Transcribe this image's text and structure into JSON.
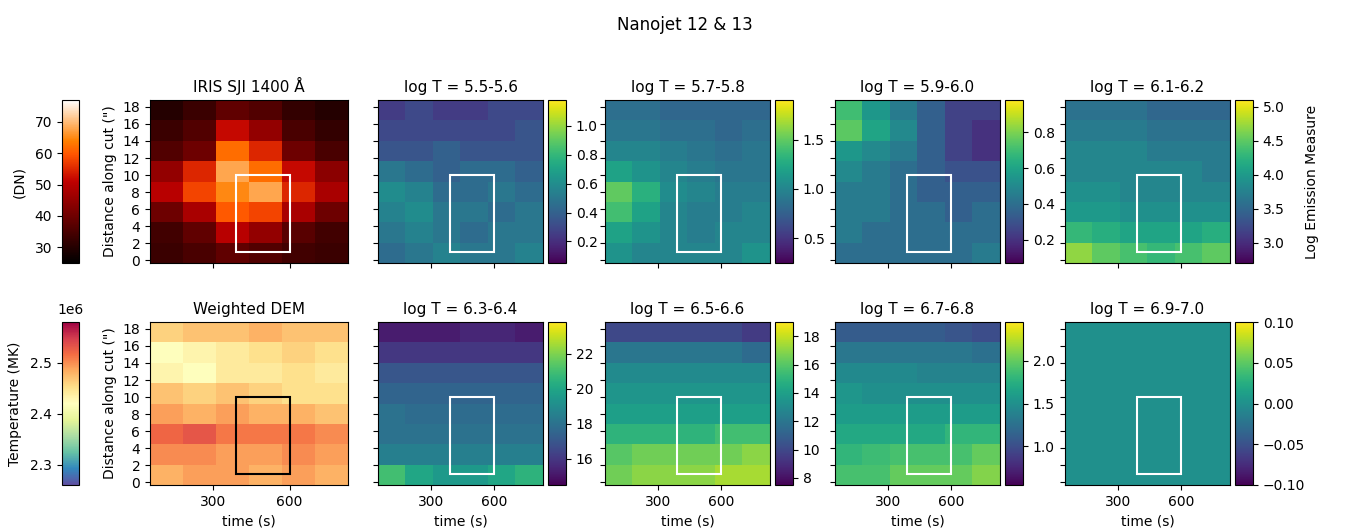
{
  "title": "Nanojet 12 & 13",
  "side_label": "Log Emission Measure",
  "chart_data": [
    {
      "type": "heatmap",
      "title": "IRIS SJI 1400 Å",
      "ylabel": "Distance along cut (\")",
      "xlim": [
        50,
        830
      ],
      "ylim": [
        -0.3,
        18.8
      ],
      "xticks": [
        300,
        600
      ],
      "yticks": [
        0,
        2,
        4,
        6,
        8,
        10,
        12,
        14,
        16,
        18
      ],
      "tick_labels": "y",
      "color": "gist_heat",
      "colorbar_side": "left",
      "colorbar_label": "(DN)",
      "clim": [
        25,
        77
      ],
      "cticks": [
        30,
        40,
        50,
        60,
        70
      ],
      "box": {
        "x": [
          390,
          600
        ],
        "y": [
          1,
          10
        ],
        "color": "white"
      },
      "cells": [
        [
          33,
          35,
          38,
          36,
          34,
          33
        ],
        [
          34,
          38,
          50,
          45,
          37,
          34
        ],
        [
          40,
          48,
          60,
          58,
          48,
          40
        ],
        [
          50,
          58,
          65,
          68,
          55,
          48
        ],
        [
          45,
          55,
          68,
          62,
          52,
          44
        ],
        [
          36,
          40,
          62,
          55,
          40,
          35
        ],
        [
          33,
          36,
          52,
          45,
          35,
          32
        ],
        [
          30,
          33,
          38,
          36,
          32,
          30
        ]
      ]
    },
    {
      "type": "heatmap",
      "title": "log T = 5.5-5.6",
      "xlim": [
        50,
        830
      ],
      "ylim": [
        -0.3,
        18.8
      ],
      "xticks": [
        300,
        600
      ],
      "yticks": [
        0,
        2,
        4,
        6,
        8,
        10,
        12,
        14,
        16,
        18
      ],
      "tick_labels": false,
      "color": "viridis",
      "colorbar_side": "right",
      "clim": [
        0.05,
        1.18
      ],
      "cticks": [
        0.2,
        0.4,
        0.6,
        0.8,
        1.0
      ],
      "box": {
        "x": [
          390,
          600
        ],
        "y": [
          1,
          10
        ],
        "color": "white"
      },
      "cells": [
        [
          0.45,
          0.5,
          0.55,
          0.5,
          0.5,
          0.55
        ],
        [
          0.5,
          0.55,
          0.5,
          0.45,
          0.5,
          0.5
        ],
        [
          0.55,
          0.6,
          0.5,
          0.5,
          0.45,
          0.5
        ],
        [
          0.6,
          0.55,
          0.45,
          0.45,
          0.5,
          0.45
        ],
        [
          0.5,
          0.45,
          0.4,
          0.45,
          0.45,
          0.4
        ],
        [
          0.35,
          0.35,
          0.4,
          0.35,
          0.35,
          0.35
        ],
        [
          0.3,
          0.3,
          0.3,
          0.3,
          0.3,
          0.35
        ],
        [
          0.25,
          0.3,
          0.25,
          0.25,
          0.3,
          0.3
        ]
      ]
    },
    {
      "type": "heatmap",
      "title": "log T = 5.7-5.8",
      "xlim": [
        50,
        830
      ],
      "ylim": [
        -0.3,
        18.8
      ],
      "xticks": [
        300,
        600
      ],
      "yticks": [
        0,
        2,
        4,
        6,
        8,
        10,
        12,
        14,
        16,
        18
      ],
      "tick_labels": false,
      "color": "viridis",
      "colorbar_side": "right",
      "clim": [
        0.25,
        1.9
      ],
      "cticks": [
        0.5,
        1.0,
        1.5
      ],
      "box": {
        "x": [
          390,
          600
        ],
        "y": [
          1,
          10
        ],
        "color": "white"
      },
      "cells": [
        [
          1.1,
          1.0,
          1.0,
          1.0,
          1.0,
          1.1
        ],
        [
          1.2,
          1.1,
          1.0,
          0.95,
          1.0,
          1.0
        ],
        [
          1.4,
          1.2,
          1.0,
          0.95,
          0.95,
          1.0
        ],
        [
          1.5,
          1.3,
          1.05,
          1.0,
          0.95,
          0.95
        ],
        [
          1.2,
          1.1,
          1.0,
          0.95,
          0.9,
          0.9
        ],
        [
          1.0,
          1.0,
          0.95,
          0.9,
          0.85,
          0.9
        ],
        [
          0.9,
          0.9,
          0.85,
          0.85,
          0.8,
          0.85
        ],
        [
          0.85,
          0.85,
          0.8,
          0.8,
          0.8,
          0.8
        ]
      ]
    },
    {
      "type": "heatmap",
      "title": "log T = 5.9-6.0",
      "xlim": [
        50,
        830
      ],
      "ylim": [
        -0.3,
        18.8
      ],
      "xticks": [
        300,
        600
      ],
      "yticks": [
        0,
        2,
        4,
        6,
        8,
        10,
        12,
        14,
        16,
        18
      ],
      "tick_labels": false,
      "color": "viridis",
      "colorbar_side": "right",
      "clim": [
        0.07,
        0.98
      ],
      "cticks": [
        0.2,
        0.4,
        0.6,
        0.8
      ],
      "box": {
        "x": [
          390,
          600
        ],
        "y": [
          1,
          10
        ],
        "color": "white"
      },
      "cells": [
        [
          0.4,
          0.4,
          0.4,
          0.4,
          0.4,
          0.45
        ],
        [
          0.45,
          0.4,
          0.4,
          0.4,
          0.4,
          0.4
        ],
        [
          0.45,
          0.45,
          0.4,
          0.4,
          0.35,
          0.4
        ],
        [
          0.45,
          0.45,
          0.4,
          0.35,
          0.35,
          0.35
        ],
        [
          0.5,
          0.45,
          0.4,
          0.35,
          0.3,
          0.3
        ],
        [
          0.55,
          0.5,
          0.45,
          0.35,
          0.25,
          0.2
        ],
        [
          0.75,
          0.6,
          0.5,
          0.35,
          0.25,
          0.2
        ],
        [
          0.7,
          0.55,
          0.45,
          0.35,
          0.25,
          0.25
        ]
      ]
    },
    {
      "type": "heatmap",
      "title": "log T = 6.1-6.2",
      "xlim": [
        50,
        830
      ],
      "ylim": [
        -0.3,
        18.8
      ],
      "xticks": [
        300,
        600
      ],
      "yticks": [
        0,
        2,
        4,
        6,
        8,
        10,
        12,
        14,
        16,
        18
      ],
      "tick_labels": false,
      "color": "viridis",
      "colorbar_side": "right",
      "clim": [
        2.7,
        5.1
      ],
      "cticks": [
        3.0,
        3.5,
        4.0,
        4.5,
        5.0
      ],
      "box": {
        "x": [
          390,
          600
        ],
        "y": [
          1,
          10
        ],
        "color": "white"
      },
      "cells": [
        [
          4.7,
          4.5,
          4.4,
          4.3,
          4.4,
          4.5
        ],
        [
          4.3,
          4.2,
          4.1,
          4.1,
          4.1,
          4.2
        ],
        [
          4.0,
          4.0,
          3.9,
          3.9,
          3.9,
          3.9
        ],
        [
          3.9,
          3.9,
          3.8,
          3.8,
          3.8,
          3.8
        ],
        [
          3.8,
          3.8,
          3.8,
          3.8,
          3.8,
          3.7
        ],
        [
          3.8,
          3.8,
          3.8,
          3.7,
          3.7,
          3.7
        ],
        [
          3.7,
          3.7,
          3.7,
          3.6,
          3.6,
          3.6
        ],
        [
          3.6,
          3.6,
          3.6,
          3.5,
          3.5,
          3.5
        ]
      ]
    },
    {
      "type": "heatmap",
      "title": "Weighted DEM",
      "xlabel": "time (s)",
      "ylabel": "Distance along cut (\")",
      "xlim": [
        50,
        830
      ],
      "ylim": [
        -0.3,
        18.8
      ],
      "xticks": [
        300,
        600
      ],
      "yticks": [
        0,
        2,
        4,
        6,
        8,
        10,
        12,
        14,
        16,
        18
      ],
      "tick_labels": true,
      "color": "Spectral_r",
      "colorbar_side": "left",
      "colorbar_label": "Temperature (MK)",
      "clim": [
        2260000,
        2580000
      ],
      "cticks": [
        {
          "value": 2300000,
          "label": "2.3"
        },
        {
          "value": 2400000,
          "label": "2.4"
        },
        {
          "value": 2500000,
          "label": "2.5"
        }
      ],
      "colorbar_offset": "1e6",
      "box": {
        "x": [
          390,
          600
        ],
        "y": [
          1,
          10
        ],
        "color": "black"
      },
      "cells": [
        [
          2480000,
          2490000,
          2490000,
          2480000,
          2490000,
          2480000
        ],
        [
          2500000,
          2500000,
          2490000,
          2490000,
          2500000,
          2490000
        ],
        [
          2520000,
          2530000,
          2510000,
          2510000,
          2510000,
          2500000
        ],
        [
          2490000,
          2480000,
          2490000,
          2480000,
          2480000,
          2470000
        ],
        [
          2470000,
          2460000,
          2470000,
          2460000,
          2450000,
          2450000
        ],
        [
          2430000,
          2420000,
          2440000,
          2440000,
          2450000,
          2440000
        ],
        [
          2420000,
          2430000,
          2440000,
          2450000,
          2460000,
          2450000
        ],
        [
          2460000,
          2470000,
          2470000,
          2480000,
          2470000,
          2470000
        ]
      ]
    },
    {
      "type": "heatmap",
      "title": "log T = 6.3-6.4",
      "xlabel": "time (s)",
      "xlim": [
        50,
        830
      ],
      "ylim": [
        -0.3,
        18.8
      ],
      "xticks": [
        300,
        600
      ],
      "yticks": [
        0,
        2,
        4,
        6,
        8,
        10,
        12,
        14,
        16,
        18
      ],
      "tick_labels": "x",
      "color": "viridis",
      "colorbar_side": "right",
      "clim": [
        14.5,
        23.8
      ],
      "cticks": [
        16,
        18,
        20,
        22
      ],
      "box": {
        "x": [
          390,
          600
        ],
        "y": [
          1,
          10
        ],
        "color": "white"
      },
      "cells": [
        [
          21,
          20,
          19.5,
          19.5,
          20,
          20.5
        ],
        [
          18.5,
          18.5,
          18.5,
          18.5,
          18.5,
          18.5
        ],
        [
          18,
          18,
          18,
          18,
          18,
          18
        ],
        [
          18,
          17.8,
          17.8,
          17.8,
          17.8,
          17.8
        ],
        [
          17.5,
          17.5,
          17.5,
          17.5,
          17.5,
          17.5
        ],
        [
          17,
          17,
          17,
          17,
          17,
          17
        ],
        [
          16,
          16,
          16,
          16,
          16,
          16
        ],
        [
          15.2,
          15.2,
          15.2,
          15.5,
          15.5,
          15.2
        ]
      ]
    },
    {
      "type": "heatmap",
      "title": "log T = 6.5-6.6",
      "xlabel": "time (s)",
      "xlim": [
        50,
        830
      ],
      "ylim": [
        -0.3,
        18.8
      ],
      "xticks": [
        300,
        600
      ],
      "yticks": [
        0,
        2,
        4,
        6,
        8,
        10,
        12,
        14,
        16,
        18
      ],
      "tick_labels": "x",
      "color": "viridis",
      "colorbar_side": "right",
      "clim": [
        7.5,
        19
      ],
      "cticks": [
        8,
        10,
        12,
        14,
        16,
        18
      ],
      "box": {
        "x": [
          390,
          600
        ],
        "y": [
          1,
          10
        ],
        "color": "white"
      },
      "cells": [
        [
          16.5,
          17,
          17,
          17,
          17.5,
          17.5
        ],
        [
          16,
          16.5,
          16.5,
          16.5,
          16.5,
          17
        ],
        [
          15,
          15,
          15,
          15,
          15.5,
          15.5
        ],
        [
          14,
          14,
          14,
          14,
          14,
          14
        ],
        [
          13.5,
          13.5,
          13.5,
          13.5,
          13.5,
          13.5
        ],
        [
          13,
          13,
          13,
          13,
          13,
          13
        ],
        [
          12,
          12,
          12,
          12,
          12,
          11.5
        ],
        [
          10,
          10,
          10,
          10,
          10,
          9.5
        ]
      ]
    },
    {
      "type": "heatmap",
      "title": "log T = 6.7-6.8",
      "xlabel": "time (s)",
      "xlim": [
        50,
        830
      ],
      "ylim": [
        -0.3,
        18.8
      ],
      "xticks": [
        300,
        600
      ],
      "yticks": [
        0,
        2,
        4,
        6,
        8,
        10,
        12,
        14,
        16,
        18
      ],
      "tick_labels": "x",
      "color": "viridis",
      "colorbar_side": "right",
      "clim": [
        0.55,
        2.45
      ],
      "cticks": [
        1.0,
        1.5,
        2.0
      ],
      "box": {
        "x": [
          390,
          600
        ],
        "y": [
          1,
          10
        ],
        "color": "white"
      },
      "cells": [
        [
          1.9,
          1.9,
          2.0,
          2.0,
          2.0,
          2.1
        ],
        [
          1.8,
          1.85,
          1.9,
          1.9,
          1.9,
          2.0
        ],
        [
          1.7,
          1.7,
          1.7,
          1.7,
          1.8,
          1.8
        ],
        [
          1.6,
          1.6,
          1.6,
          1.6,
          1.6,
          1.6
        ],
        [
          1.55,
          1.5,
          1.5,
          1.5,
          1.5,
          1.5
        ],
        [
          1.45,
          1.45,
          1.45,
          1.4,
          1.4,
          1.4
        ],
        [
          1.3,
          1.3,
          1.3,
          1.3,
          1.3,
          1.25
        ],
        [
          1.1,
          1.1,
          1.1,
          1.1,
          1.05,
          1.0
        ]
      ]
    },
    {
      "type": "heatmap",
      "title": "log T = 6.9-7.0",
      "xlabel": "time (s)",
      "xlim": [
        50,
        830
      ],
      "ylim": [
        -0.3,
        18.8
      ],
      "xticks": [
        300,
        600
      ],
      "yticks": [
        0,
        2,
        4,
        6,
        8,
        10,
        12,
        14,
        16,
        18
      ],
      "tick_labels": "x",
      "color": "viridis",
      "colorbar_side": "right",
      "clim": [
        -0.1,
        0.1
      ],
      "cticks": [
        {
          "value": -0.1,
          "label": "−0.10"
        },
        {
          "value": -0.05,
          "label": "−0.05"
        },
        {
          "value": 0,
          "label": "0.00"
        },
        {
          "value": 0.05,
          "label": "0.05"
        },
        {
          "value": 0.1,
          "label": "0.10"
        }
      ],
      "box": {
        "x": [
          390,
          600
        ],
        "y": [
          1,
          10
        ],
        "color": "white"
      },
      "cells": [
        [
          0,
          0,
          0,
          0,
          0,
          0
        ],
        [
          0,
          0,
          0,
          0,
          0,
          0
        ],
        [
          0,
          0,
          0,
          0,
          0,
          0
        ],
        [
          0,
          0,
          0,
          0,
          0,
          0
        ],
        [
          0,
          0,
          0,
          0,
          0,
          0
        ],
        [
          0,
          0,
          0,
          0,
          0,
          0
        ],
        [
          0,
          0,
          0,
          0,
          0,
          0
        ],
        [
          0,
          0,
          0,
          0,
          0,
          0
        ]
      ]
    }
  ]
}
